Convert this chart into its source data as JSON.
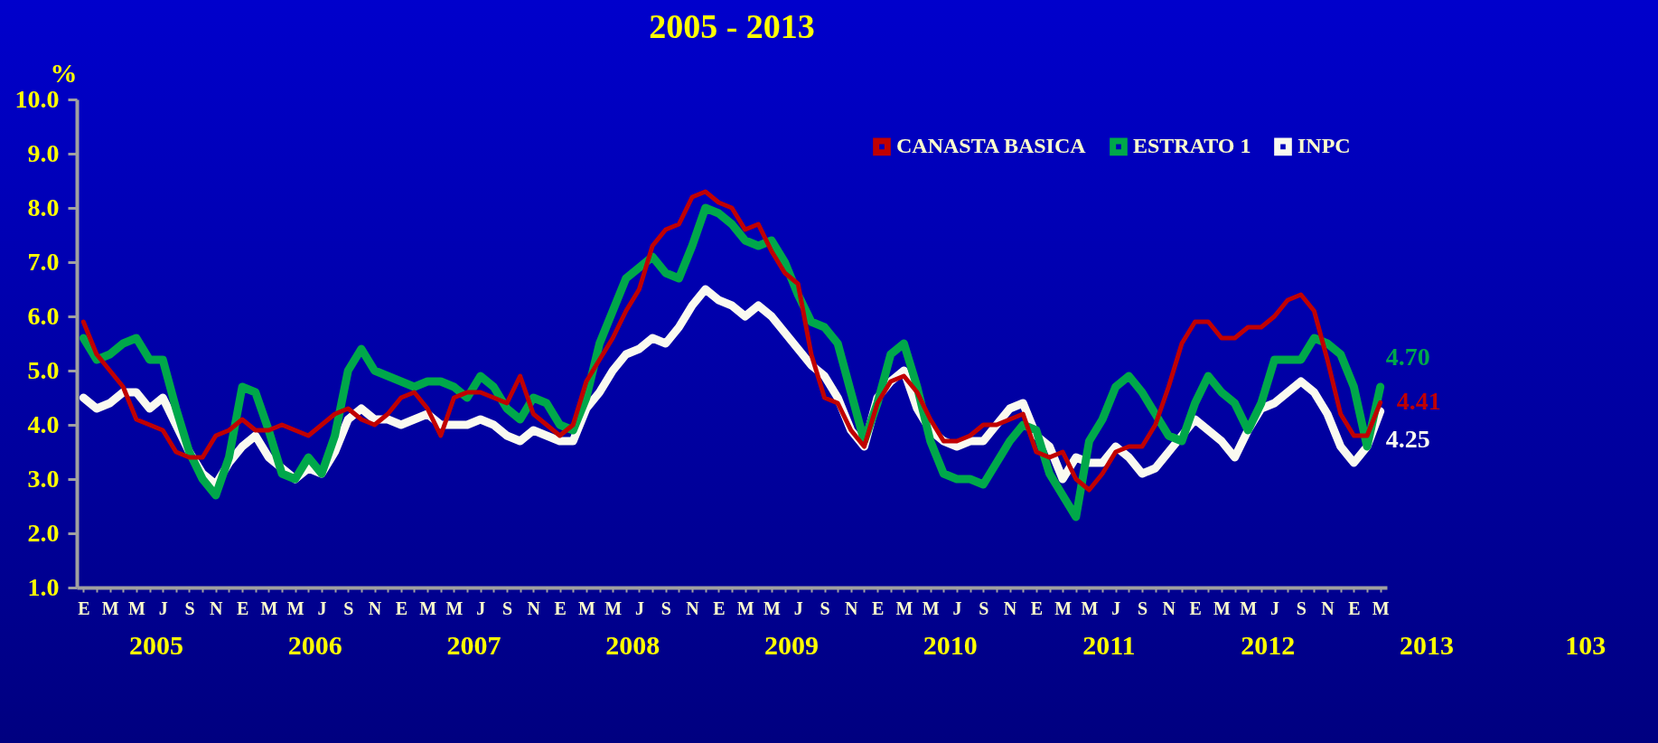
{
  "chart_data": {
    "type": "line",
    "title": "2005 - 2013",
    "ylabel": "%",
    "categories": [
      "E",
      null,
      "M",
      null,
      "M",
      null,
      "J",
      null,
      "S",
      null,
      "N",
      null,
      "E",
      null,
      "M",
      null,
      "M",
      null,
      "J",
      null,
      "S",
      null,
      "N",
      null,
      "E",
      null,
      "M",
      null,
      "M",
      null,
      "J",
      null,
      "S",
      null,
      "N",
      null,
      "E",
      null,
      "M",
      null,
      "M",
      null,
      "J",
      null,
      "S",
      null,
      "N",
      null,
      "E",
      null,
      "M",
      null,
      "M",
      null,
      "J",
      null,
      "S",
      null,
      "N",
      null,
      "E",
      null,
      "M",
      null,
      "M",
      null,
      "J",
      null,
      "S",
      null,
      "N",
      null,
      "E",
      null,
      "M",
      null,
      "M",
      null,
      "J",
      null,
      "S",
      null,
      "N",
      null,
      "E",
      null,
      "M",
      null,
      "M",
      null,
      "J",
      null,
      "S",
      null,
      "N",
      null,
      "E",
      null,
      "M"
    ],
    "series": [
      {
        "name": "CANASTA BASICA",
        "color": "#c00000",
        "values": [
          5.9,
          5.3,
          5.0,
          4.7,
          4.1,
          4.0,
          3.9,
          3.5,
          3.4,
          3.4,
          3.8,
          3.9,
          4.1,
          3.9,
          3.9,
          4.0,
          3.9,
          3.8,
          4.0,
          4.2,
          4.3,
          4.1,
          4.0,
          4.2,
          4.5,
          4.6,
          4.3,
          3.8,
          4.5,
          4.6,
          4.6,
          4.5,
          4.4,
          4.9,
          4.2,
          4.0,
          3.8,
          4.0,
          4.8,
          5.2,
          5.6,
          6.1,
          6.5,
          7.3,
          7.6,
          7.7,
          8.2,
          8.3,
          8.1,
          8.0,
          7.6,
          7.7,
          7.2,
          6.8,
          6.6,
          5.3,
          4.5,
          4.4,
          3.9,
          3.6,
          4.4,
          4.8,
          4.9,
          4.6,
          4.1,
          3.7,
          3.7,
          3.8,
          4.0,
          4.0,
          4.1,
          4.2,
          3.5,
          3.4,
          3.5,
          3.0,
          2.8,
          3.1,
          3.5,
          3.6,
          3.6,
          4.0,
          4.7,
          5.5,
          5.9,
          5.9,
          5.6,
          5.6,
          5.8,
          5.8,
          6.0,
          6.3,
          6.4,
          6.1,
          5.2,
          4.2,
          3.8,
          3.8,
          4.41
        ],
        "value_labels": [
          null,
          null,
          null,
          null,
          null,
          null,
          null,
          null,
          null,
          null,
          null,
          null,
          null,
          null,
          null,
          null,
          null,
          null,
          null,
          null,
          null,
          null,
          null,
          null,
          null,
          null,
          null,
          null,
          null,
          null,
          null,
          null,
          null,
          null,
          null,
          null,
          null,
          null,
          null,
          null,
          null,
          null,
          null,
          null,
          null,
          null,
          null,
          null,
          null,
          null,
          null,
          null,
          null,
          null,
          null,
          null,
          null,
          null,
          null,
          null,
          null,
          null,
          null,
          null,
          null,
          null,
          null,
          null,
          null,
          null,
          null,
          null,
          null,
          null,
          null,
          null,
          null,
          null,
          null,
          null,
          null,
          null,
          null,
          null,
          null,
          null,
          null,
          null,
          null,
          null,
          null,
          null,
          null,
          null,
          null,
          null,
          null,
          null,
          "4.41"
        ]
      },
      {
        "name": "ESTRATO 1",
        "color": "#00a84a",
        "values": [
          5.6,
          5.2,
          5.3,
          5.5,
          5.6,
          5.2,
          5.2,
          4.3,
          3.5,
          3.0,
          2.7,
          3.4,
          4.7,
          4.6,
          3.9,
          3.1,
          3.0,
          3.4,
          3.1,
          3.8,
          5.0,
          5.4,
          5.0,
          4.9,
          4.8,
          4.7,
          4.8,
          4.8,
          4.7,
          4.5,
          4.9,
          4.7,
          4.3,
          4.1,
          4.5,
          4.4,
          4.0,
          3.9,
          4.5,
          5.5,
          6.1,
          6.7,
          6.9,
          7.1,
          6.8,
          6.7,
          7.3,
          8.0,
          7.9,
          7.7,
          7.4,
          7.3,
          7.4,
          7.0,
          6.4,
          5.9,
          5.8,
          5.5,
          4.6,
          3.7,
          4.4,
          5.3,
          5.5,
          4.7,
          3.7,
          3.1,
          3.0,
          3.0,
          2.9,
          3.3,
          3.7,
          4.0,
          3.9,
          3.1,
          2.7,
          2.3,
          3.7,
          4.1,
          4.7,
          4.9,
          4.6,
          4.2,
          3.8,
          3.7,
          4.4,
          4.9,
          4.6,
          4.4,
          3.9,
          4.4,
          5.2,
          5.2,
          5.2,
          5.6,
          5.5,
          5.3,
          4.7,
          3.6,
          4.7
        ],
        "value_labels": [
          null,
          null,
          null,
          null,
          null,
          null,
          null,
          null,
          null,
          null,
          null,
          null,
          null,
          null,
          null,
          null,
          null,
          null,
          null,
          null,
          null,
          null,
          null,
          null,
          null,
          null,
          null,
          null,
          null,
          null,
          null,
          null,
          null,
          null,
          null,
          null,
          null,
          null,
          null,
          null,
          null,
          null,
          null,
          null,
          null,
          null,
          null,
          null,
          null,
          null,
          null,
          null,
          null,
          null,
          null,
          null,
          null,
          null,
          null,
          null,
          null,
          null,
          null,
          null,
          null,
          null,
          null,
          null,
          null,
          null,
          null,
          null,
          null,
          null,
          null,
          null,
          null,
          null,
          null,
          null,
          null,
          null,
          null,
          null,
          null,
          null,
          null,
          null,
          null,
          null,
          null,
          null,
          null,
          null,
          null,
          null,
          null,
          null,
          "4.70"
        ]
      },
      {
        "name": "INPC",
        "color": "#fafaf0",
        "values": [
          4.5,
          4.3,
          4.4,
          4.6,
          4.6,
          4.3,
          4.5,
          4.0,
          3.5,
          3.1,
          2.9,
          3.3,
          3.6,
          3.8,
          3.4,
          3.2,
          3.0,
          3.2,
          3.1,
          3.5,
          4.1,
          4.3,
          4.1,
          4.1,
          4.0,
          4.1,
          4.2,
          4.0,
          4.0,
          4.0,
          4.1,
          4.0,
          3.8,
          3.7,
          3.9,
          3.8,
          3.7,
          3.7,
          4.3,
          4.6,
          5.0,
          5.3,
          5.4,
          5.6,
          5.5,
          5.8,
          6.2,
          6.5,
          6.3,
          6.2,
          6.0,
          6.2,
          6.0,
          5.7,
          5.4,
          5.1,
          4.9,
          4.5,
          3.9,
          3.6,
          4.5,
          4.8,
          5.0,
          4.3,
          3.9,
          3.7,
          3.6,
          3.7,
          3.7,
          4.0,
          4.3,
          4.4,
          3.8,
          3.6,
          3.0,
          3.4,
          3.3,
          3.3,
          3.6,
          3.4,
          3.1,
          3.2,
          3.5,
          3.8,
          4.1,
          3.9,
          3.7,
          3.4,
          3.9,
          4.3,
          4.4,
          4.6,
          4.8,
          4.6,
          4.2,
          3.6,
          3.3,
          3.6,
          4.25
        ],
        "value_labels": [
          null,
          null,
          null,
          null,
          null,
          null,
          null,
          null,
          null,
          null,
          null,
          null,
          null,
          null,
          null,
          null,
          null,
          null,
          null,
          null,
          null,
          null,
          null,
          null,
          null,
          null,
          null,
          null,
          null,
          null,
          null,
          null,
          null,
          null,
          null,
          null,
          null,
          null,
          null,
          null,
          null,
          null,
          null,
          null,
          null,
          null,
          null,
          null,
          null,
          null,
          null,
          null,
          null,
          null,
          null,
          null,
          null,
          null,
          null,
          null,
          null,
          null,
          null,
          null,
          null,
          null,
          null,
          null,
          null,
          null,
          null,
          null,
          null,
          null,
          null,
          null,
          null,
          null,
          null,
          null,
          null,
          null,
          null,
          null,
          null,
          null,
          null,
          null,
          null,
          null,
          null,
          null,
          null,
          null,
          null,
          null,
          null,
          null,
          "4.25"
        ]
      }
    ],
    "ylim": [
      1,
      10
    ],
    "yticks": [
      {
        "value": 1,
        "label": "1.0"
      },
      {
        "value": 2,
        "label": "2.0"
      },
      {
        "value": 3,
        "label": "3.0"
      },
      {
        "value": 4,
        "label": "4.0"
      },
      {
        "value": 5,
        "label": "5.0"
      },
      {
        "value": 6,
        "label": "6.0"
      },
      {
        "value": 7,
        "label": "7.0"
      },
      {
        "value": 8,
        "label": "8.0"
      },
      {
        "value": 9,
        "label": "9.0"
      },
      {
        "value": 10,
        "label": "10.0"
      }
    ],
    "legend": "top right",
    "annotations": [
      "2005",
      "2006",
      "2007",
      "2008",
      "2009",
      "2010",
      "2011",
      "2012",
      "2013",
      "103"
    ]
  }
}
